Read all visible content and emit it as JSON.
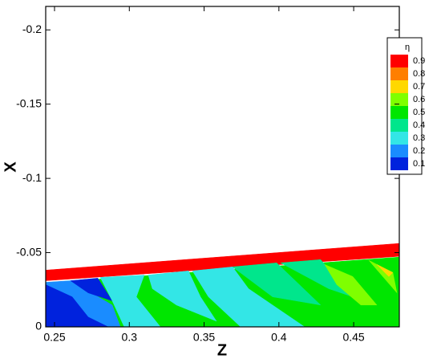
{
  "chart_data": {
    "type": "contour",
    "xlabel": "Z",
    "ylabel": "X",
    "xlim": [
      0.2441,
      0.4805
    ],
    "ylim": [
      0,
      -0.2158
    ],
    "xticks": [
      0.25,
      0.3,
      0.35,
      0.4,
      0.45
    ],
    "yticks": [
      0,
      -0.05,
      -0.1,
      -0.15,
      -0.2
    ],
    "legend_title": "η",
    "legend": [
      {
        "level": 0.9,
        "color": "#ff0000"
      },
      {
        "level": 0.8,
        "color": "#ff7f00"
      },
      {
        "level": 0.7,
        "color": "#ffd800"
      },
      {
        "level": 0.6,
        "color": "#7fff00"
      },
      {
        "level": 0.5,
        "color": "#00e600"
      },
      {
        "level": 0.4,
        "color": "#00e68c"
      },
      {
        "level": 0.3,
        "color": "#33e6e6"
      },
      {
        "level": 0.2,
        "color": "#1a8cff"
      },
      {
        "level": 0.1,
        "color": "#0022dd"
      }
    ],
    "regions": [
      {
        "level": 0.9,
        "z": [
          0.2441,
          0.4805,
          0.4805,
          0.2441
        ],
        "x": [
          -0.0382,
          -0.0562,
          -0.0475,
          -0.0311
        ]
      },
      {
        "level": 0.5,
        "z": [
          0.2441,
          0.4805,
          0.4805,
          0.2441
        ],
        "x": [
          -0.0295,
          -0.047,
          0,
          0
        ]
      },
      {
        "level": 0.2,
        "z": [
          0.2441,
          0.2607,
          0.2886,
          0.294,
          0.2859,
          0.2725,
          0.2618,
          0.2441
        ],
        "x": [
          -0.03,
          -0.0311,
          -0.0147,
          0,
          0,
          -0.0066,
          -0.0202,
          -0.0257
        ]
      },
      {
        "level": 0.1,
        "z": [
          0.2441,
          0.2618,
          0.2725,
          0.2859,
          0.2441
        ],
        "x": [
          -0.0284,
          -0.0202,
          -0.0066,
          0,
          0
        ]
      },
      {
        "level": 0.1,
        "z": [
          0.2607,
          0.2789,
          0.2886,
          0.2725
        ],
        "x": [
          -0.0311,
          -0.0328,
          -0.0175,
          -0.0229
        ]
      },
      {
        "level": 0.3,
        "z": [
          0.2806,
          0.31,
          0.3047,
          0.3208,
          0.2966,
          0.2886
        ],
        "x": [
          -0.0333,
          -0.0349,
          -0.0202,
          0,
          0,
          -0.0175
        ]
      },
      {
        "level": 0.3,
        "z": [
          0.3127,
          0.3395,
          0.3476,
          0.3583,
          0.3315,
          0.3154
        ],
        "x": [
          -0.0349,
          -0.0377,
          -0.0202,
          -0.0038,
          -0.0147,
          -0.0257
        ]
      },
      {
        "level": 0.3,
        "z": [
          0.3422,
          0.369,
          0.3797,
          0.4172,
          0.3744,
          0.3529
        ],
        "x": [
          -0.0377,
          -0.0404,
          -0.0257,
          0,
          0,
          -0.0202
        ]
      },
      {
        "level": 0.4,
        "z": [
          0.369,
          0.3985,
          0.4279,
          0.3958
        ],
        "x": [
          -0.0404,
          -0.0431,
          -0.0147,
          -0.0202
        ]
      },
      {
        "level": 0.4,
        "z": [
          0.4012,
          0.4279,
          0.4494,
          0.4333
        ],
        "x": [
          -0.0431,
          -0.0453,
          -0.0202,
          -0.0257
        ]
      },
      {
        "level": 0.6,
        "z": [
          0.4306,
          0.4494,
          0.4655,
          0.4548,
          0.4387
        ],
        "x": [
          -0.042,
          -0.0339,
          -0.0147,
          -0.0147,
          -0.0284
        ]
      },
      {
        "level": 0.6,
        "z": [
          0.4601,
          0.4762,
          0.4789
        ],
        "x": [
          -0.0448,
          -0.0366,
          -0.0229
        ]
      },
      {
        "level": 0.7,
        "z": [
          0.4655,
          0.4762,
          0.4735
        ],
        "x": [
          -0.042,
          -0.0366,
          -0.0339
        ]
      }
    ]
  }
}
